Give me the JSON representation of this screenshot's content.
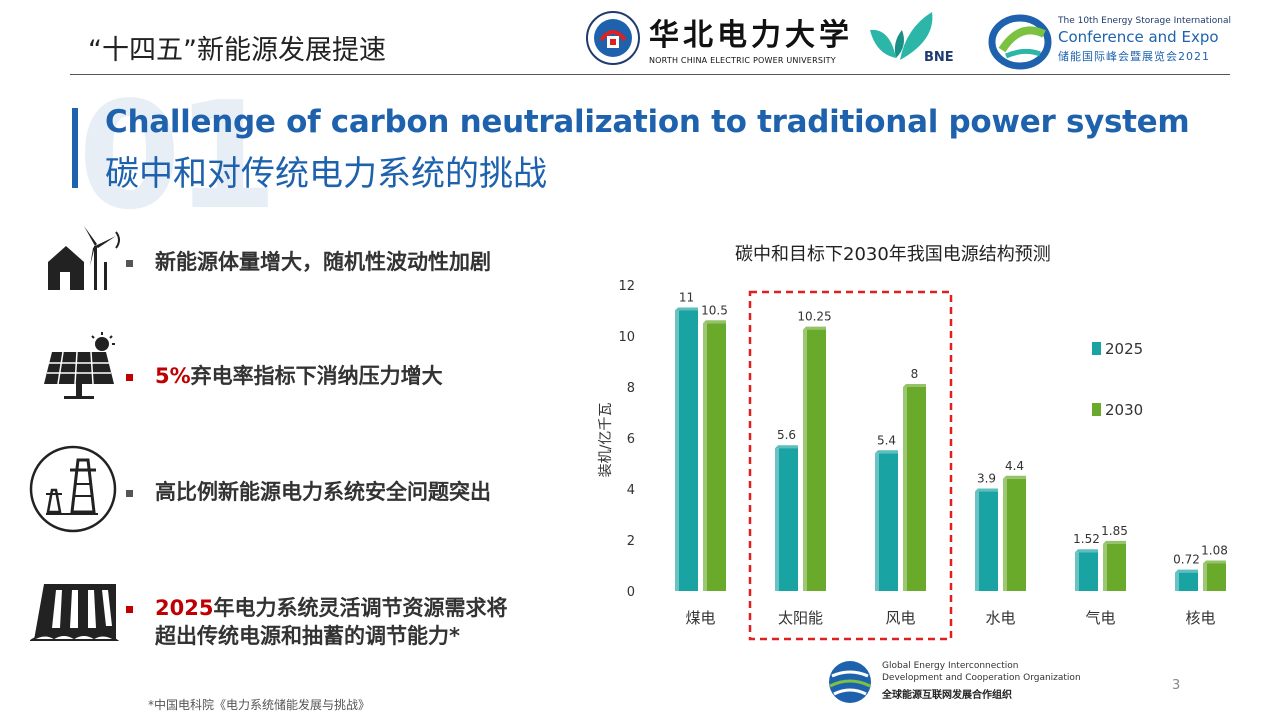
{
  "header": {
    "title": "“十四五”新能源发展提速",
    "ncepu": {
      "cn": "华北电力大学",
      "en": "NORTH CHINA ELECTRIC POWER UNIVERSITY"
    },
    "bne": {
      "text": "BNE"
    },
    "expo": {
      "line1": "The 10th Energy Storage International",
      "line2": "Conference and Expo",
      "line3": "储能国际峰会暨展览会2021"
    }
  },
  "section": {
    "number": "01",
    "title_en": "Challenge of carbon neutralization to traditional power system",
    "title_cn": "碳中和对传统电力系统的挑战"
  },
  "bullets": [
    {
      "icon": "wind-house-icon",
      "pre": "",
      "text": "新能源体量增大，随机性波动性加剧"
    },
    {
      "icon": "solar-panel-icon",
      "pre": "5%",
      "text": "弃电率指标下消纳压力增大"
    },
    {
      "icon": "power-tower-icon",
      "pre": "",
      "text": "高比例新能源电力系统安全问题突出"
    },
    {
      "icon": "dam-icon",
      "pre": "2025",
      "text": "年电力系统灵活调节资源需求将",
      "text2": "超出传统电源和抽蓄的调节能力*"
    }
  ],
  "chart_data": {
    "type": "bar",
    "title": "碳中和目标下2030年我国电源结构预测",
    "ylabel": "装机/亿千瓦",
    "xlabel": "",
    "ylim": [
      0,
      12
    ],
    "yticks": [
      0,
      2,
      4,
      6,
      8,
      10,
      12
    ],
    "categories": [
      "煤电",
      "太阳能",
      "风电",
      "水电",
      "气电",
      "核电"
    ],
    "series": [
      {
        "name": "2025",
        "color": "#1aa3a3",
        "values": [
          11,
          5.6,
          5.4,
          3.9,
          1.52,
          0.72
        ],
        "labels": [
          "11",
          "5.6",
          "5.4",
          "3.9",
          "1.52",
          "0.72"
        ]
      },
      {
        "name": "2030",
        "color": "#6aaa2a",
        "values": [
          10.5,
          10.25,
          8,
          4.4,
          1.85,
          1.08
        ],
        "labels": [
          "10.5",
          "10.25",
          "8",
          "4.4",
          "1.85",
          "1.08"
        ]
      }
    ],
    "highlight": [
      "太阳能",
      "风电"
    ],
    "highlight_color": "#e02020",
    "legend": "right",
    "grid": false
  },
  "geidco": {
    "line1": "Global Energy Interconnection",
    "line2": "Development and Cooperation Organization",
    "line3": "全球能源互联网发展合作组织"
  },
  "footnote": "*中国电科院《电力系统储能发展与挑战》",
  "page_number": "3"
}
